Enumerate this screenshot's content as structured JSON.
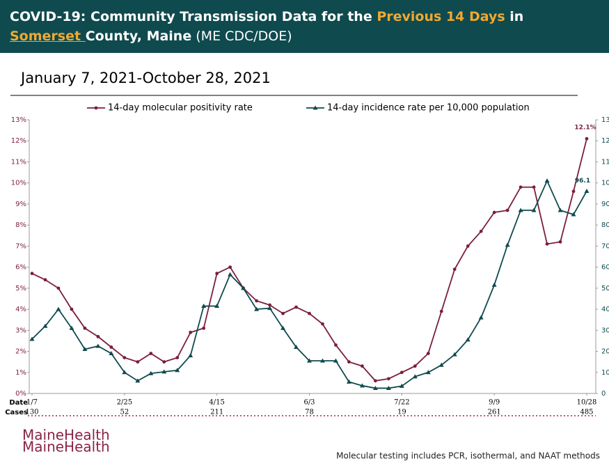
{
  "header": {
    "line1": [
      "COVID-19: Community Transmission Data for the ",
      "Previous 14 Days",
      " in"
    ],
    "line2": [
      "Somerset ",
      "County, Maine",
      " (ME CDC/DOE)"
    ]
  },
  "chart_data": {
    "type": "line",
    "subtitle": "January 7, 2021-October 28, 2021",
    "categories": [
      "1/7",
      null,
      null,
      null,
      null,
      null,
      null,
      "2/25",
      null,
      null,
      null,
      null,
      null,
      null,
      "4/15",
      null,
      null,
      null,
      null,
      null,
      null,
      "6/3",
      null,
      null,
      null,
      null,
      null,
      null,
      "7/22",
      null,
      null,
      null,
      null,
      null,
      null,
      "9/9",
      null,
      null,
      null,
      null,
      null,
      null,
      "10/28"
    ],
    "row_labels": [
      "Date",
      "Cases"
    ],
    "cases": [
      130,
      null,
      null,
      null,
      null,
      null,
      null,
      52,
      null,
      null,
      null,
      null,
      null,
      null,
      211,
      null,
      null,
      null,
      null,
      null,
      null,
      78,
      null,
      null,
      null,
      null,
      null,
      null,
      19,
      null,
      null,
      null,
      null,
      null,
      null,
      261,
      null,
      null,
      null,
      null,
      null,
      null,
      485
    ],
    "series": [
      {
        "name": "14-day molecular positivity rate",
        "color": "#7b1e3e",
        "marker": "circle",
        "values": [
          5.7,
          5.4,
          5.0,
          4.0,
          3.1,
          2.7,
          2.2,
          1.7,
          1.5,
          1.9,
          1.5,
          1.7,
          2.9,
          3.1,
          5.7,
          6.0,
          5.0,
          4.4,
          4.2,
          3.8,
          4.1,
          3.8,
          3.3,
          2.3,
          1.5,
          1.3,
          0.6,
          0.7,
          1.0,
          1.3,
          1.9,
          3.9,
          5.9,
          7.0,
          7.7,
          8.6,
          8.7,
          9.8,
          9.8,
          7.1,
          7.2,
          9.6,
          12.1
        ],
        "value_labels": [
          null,
          null,
          null,
          null,
          null,
          null,
          null,
          null,
          null,
          null,
          null,
          null,
          null,
          null,
          null,
          null,
          null,
          null,
          null,
          null,
          null,
          null,
          null,
          null,
          null,
          null,
          null,
          null,
          null,
          null,
          null,
          null,
          null,
          null,
          null,
          null,
          null,
          null,
          null,
          null,
          null,
          null,
          "12.1%"
        ]
      },
      {
        "name": "14-day incidence rate per 10,000 population",
        "color": "#0f4a4e",
        "marker": "triangle",
        "axis": "y2",
        "label_last": true,
        "values": [
          25.8,
          32,
          40,
          31,
          21,
          22.5,
          19,
          10,
          6,
          9.5,
          10.3,
          11,
          18,
          41.5,
          41.5,
          56.5,
          50,
          40,
          40.5,
          31,
          22,
          15.5,
          15.5,
          15.5,
          5.5,
          3.7,
          2.5,
          2.5,
          3.5,
          8,
          10,
          13.5,
          18.5,
          25.5,
          36,
          51.5,
          70.5,
          87,
          87,
          101,
          87,
          85,
          96.1
        ]
      }
    ],
    "ylim": [
      0,
      13
    ],
    "yticks": [
      {
        "value": 0,
        "label": "0%"
      },
      {
        "value": 1,
        "label": "1%"
      },
      {
        "value": 2,
        "label": "2%"
      },
      {
        "value": 3,
        "label": "3%"
      },
      {
        "value": 4,
        "label": "4%"
      },
      {
        "value": 5,
        "label": "5%"
      },
      {
        "value": 6,
        "label": "6%"
      },
      {
        "value": 7,
        "label": "7%"
      },
      {
        "value": 8,
        "label": "8%"
      },
      {
        "value": 9,
        "label": "9%"
      },
      {
        "value": 10,
        "label": "10%"
      },
      {
        "value": 11,
        "label": "11%"
      },
      {
        "value": 12,
        "label": "12%"
      },
      {
        "value": 13,
        "label": "13%"
      }
    ],
    "y2lim": [
      0,
      130
    ],
    "y2ticks": [
      0,
      10,
      20,
      30,
      40,
      50,
      60,
      70,
      80,
      90,
      100,
      110,
      120,
      130
    ],
    "grid": false,
    "legend": "top"
  },
  "footer": {
    "logo": [
      "MaineHealth",
      "MaineHealth"
    ],
    "note": "Molecular testing includes PCR, isothermal, and NAAT methods"
  }
}
